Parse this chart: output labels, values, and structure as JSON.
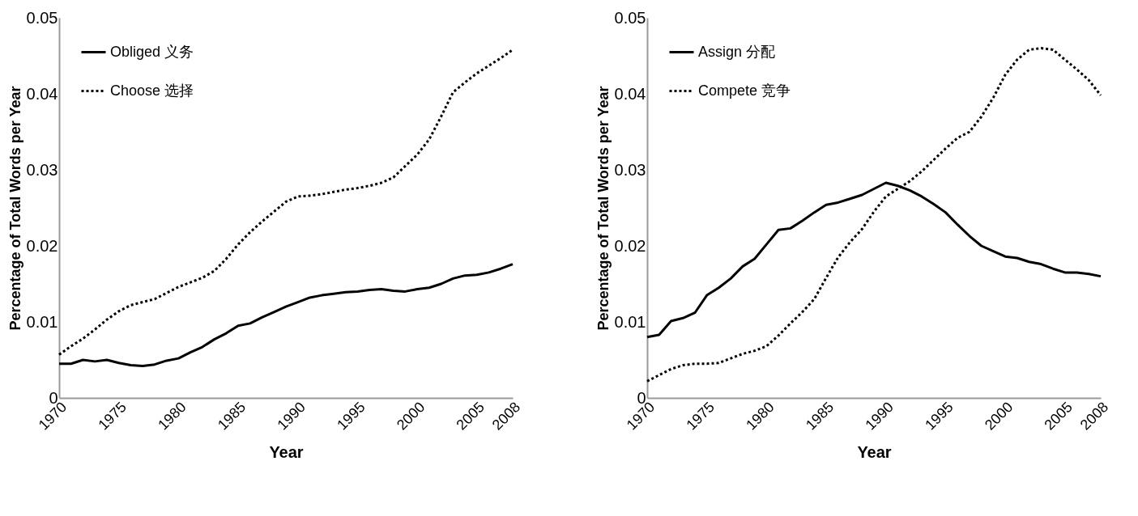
{
  "chart_data": [
    {
      "type": "line",
      "xlabel": "Year",
      "ylabel": "Percentage of Total Words per Year",
      "x": [
        1970,
        1971,
        1972,
        1973,
        1974,
        1975,
        1976,
        1977,
        1978,
        1979,
        1980,
        1981,
        1982,
        1983,
        1984,
        1985,
        1986,
        1987,
        1988,
        1989,
        1990,
        1991,
        1992,
        1993,
        1994,
        1995,
        1996,
        1997,
        1998,
        1999,
        2000,
        2001,
        2002,
        2003,
        2004,
        2005,
        2006,
        2007,
        2008
      ],
      "xlim": [
        1970,
        2008
      ],
      "xticks": [
        1970,
        1975,
        1980,
        1985,
        1990,
        1995,
        2000,
        2005,
        2008
      ],
      "ylim": [
        0,
        0.05
      ],
      "yticks": [
        0,
        0.01,
        0.02,
        0.03,
        0.04,
        0.05
      ],
      "grid": false,
      "legend": "top left",
      "series": [
        {
          "name": "Obliged 义务",
          "color": "#000000",
          "line_style": "solid",
          "values": [
            0.0045,
            0.0045,
            0.005,
            0.0048,
            0.005,
            0.0046,
            0.0043,
            0.0042,
            0.0044,
            0.0049,
            0.0052,
            0.006,
            0.0067,
            0.0077,
            0.0085,
            0.0095,
            0.0098,
            0.0106,
            0.0113,
            0.012,
            0.0126,
            0.0132,
            0.0135,
            0.0137,
            0.0139,
            0.014,
            0.0142,
            0.0143,
            0.0141,
            0.014,
            0.0143,
            0.0145,
            0.015,
            0.0157,
            0.0161,
            0.0162,
            0.0165,
            0.017,
            0.0176
          ]
        },
        {
          "name": "Choose 选择",
          "color": "#000000",
          "line_style": "dotted",
          "values": [
            0.0057,
            0.0068,
            0.0078,
            0.009,
            0.0103,
            0.0114,
            0.0122,
            0.0126,
            0.013,
            0.0138,
            0.0146,
            0.0152,
            0.0158,
            0.0167,
            0.0183,
            0.0202,
            0.0218,
            0.0232,
            0.0245,
            0.0258,
            0.0265,
            0.0266,
            0.0268,
            0.0271,
            0.0274,
            0.0276,
            0.0279,
            0.0283,
            0.029,
            0.0305,
            0.032,
            0.034,
            0.037,
            0.0402,
            0.0415,
            0.0427,
            0.0437,
            0.0447,
            0.0458
          ]
        }
      ]
    },
    {
      "type": "line",
      "xlabel": "Year",
      "ylabel": "Percentage of Total Words per Year",
      "x": [
        1970,
        1971,
        1972,
        1973,
        1974,
        1975,
        1976,
        1977,
        1978,
        1979,
        1980,
        1981,
        1982,
        1983,
        1984,
        1985,
        1986,
        1987,
        1988,
        1989,
        1990,
        1991,
        1992,
        1993,
        1994,
        1995,
        1996,
        1997,
        1998,
        1999,
        2000,
        2001,
        2002,
        2003,
        2004,
        2005,
        2006,
        2007,
        2008
      ],
      "xlim": [
        1970,
        2008
      ],
      "xticks": [
        1970,
        1975,
        1980,
        1985,
        1990,
        1995,
        2000,
        2005,
        2008
      ],
      "ylim": [
        0,
        0.05
      ],
      "yticks": [
        0,
        0.01,
        0.02,
        0.03,
        0.04,
        0.05
      ],
      "grid": false,
      "legend": "top left",
      "series": [
        {
          "name": "Assign  分配",
          "color": "#000000",
          "line_style": "solid",
          "values": [
            0.008,
            0.0083,
            0.0101,
            0.0105,
            0.0112,
            0.0135,
            0.0145,
            0.0157,
            0.0173,
            0.0183,
            0.0202,
            0.0221,
            0.0223,
            0.0233,
            0.0244,
            0.0254,
            0.0257,
            0.0262,
            0.0267,
            0.0275,
            0.0283,
            0.0279,
            0.0273,
            0.0265,
            0.0255,
            0.0244,
            0.0228,
            0.0213,
            0.02,
            0.0193,
            0.0186,
            0.0184,
            0.0179,
            0.0176,
            0.017,
            0.0165,
            0.0165,
            0.0163,
            0.016
          ]
        },
        {
          "name": "Compete 竞争",
          "color": "#000000",
          "line_style": "dotted",
          "values": [
            0.0022,
            0.003,
            0.0038,
            0.0043,
            0.0045,
            0.0045,
            0.0046,
            0.0052,
            0.0058,
            0.0062,
            0.0068,
            0.0082,
            0.0098,
            0.0113,
            0.013,
            0.0158,
            0.0185,
            0.0205,
            0.0222,
            0.0245,
            0.0265,
            0.0275,
            0.0285,
            0.0298,
            0.0313,
            0.0328,
            0.0342,
            0.035,
            0.037,
            0.0395,
            0.0425,
            0.0445,
            0.0458,
            0.046,
            0.0458,
            0.0445,
            0.0432,
            0.0418,
            0.0398
          ]
        }
      ]
    }
  ]
}
